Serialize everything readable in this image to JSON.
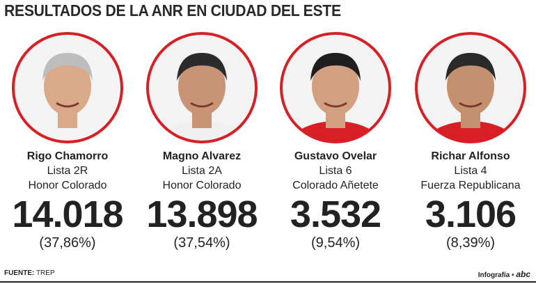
{
  "header": {
    "title": "RESULTADOS DE LA ANR EN CIUDAD DEL ESTE"
  },
  "candidates": [
    {
      "name": "Rigo Chamorro",
      "list": "Lista 2R",
      "movement": "Honor Colorado",
      "votes": "14.018",
      "percent": "(37,86%)"
    },
    {
      "name": "Magno Alvarez",
      "list": "Lista 2A",
      "movement": "Honor Colorado",
      "votes": "13.898",
      "percent": "(37,54%)"
    },
    {
      "name": "Gustavo Ovelar",
      "list": "Lista 6",
      "movement": "Colorado Añetete",
      "votes": "3.532",
      "percent": "(9,54%)"
    },
    {
      "name": "Richar Alfonso",
      "list": "Lista 4",
      "movement": "Fuerza Republicana",
      "votes": "3.106",
      "percent": "(8,39%)"
    }
  ],
  "footer": {
    "source_label": "FUENTE:",
    "source": "TREP",
    "credit": "Infografía",
    "logo": "abc"
  }
}
